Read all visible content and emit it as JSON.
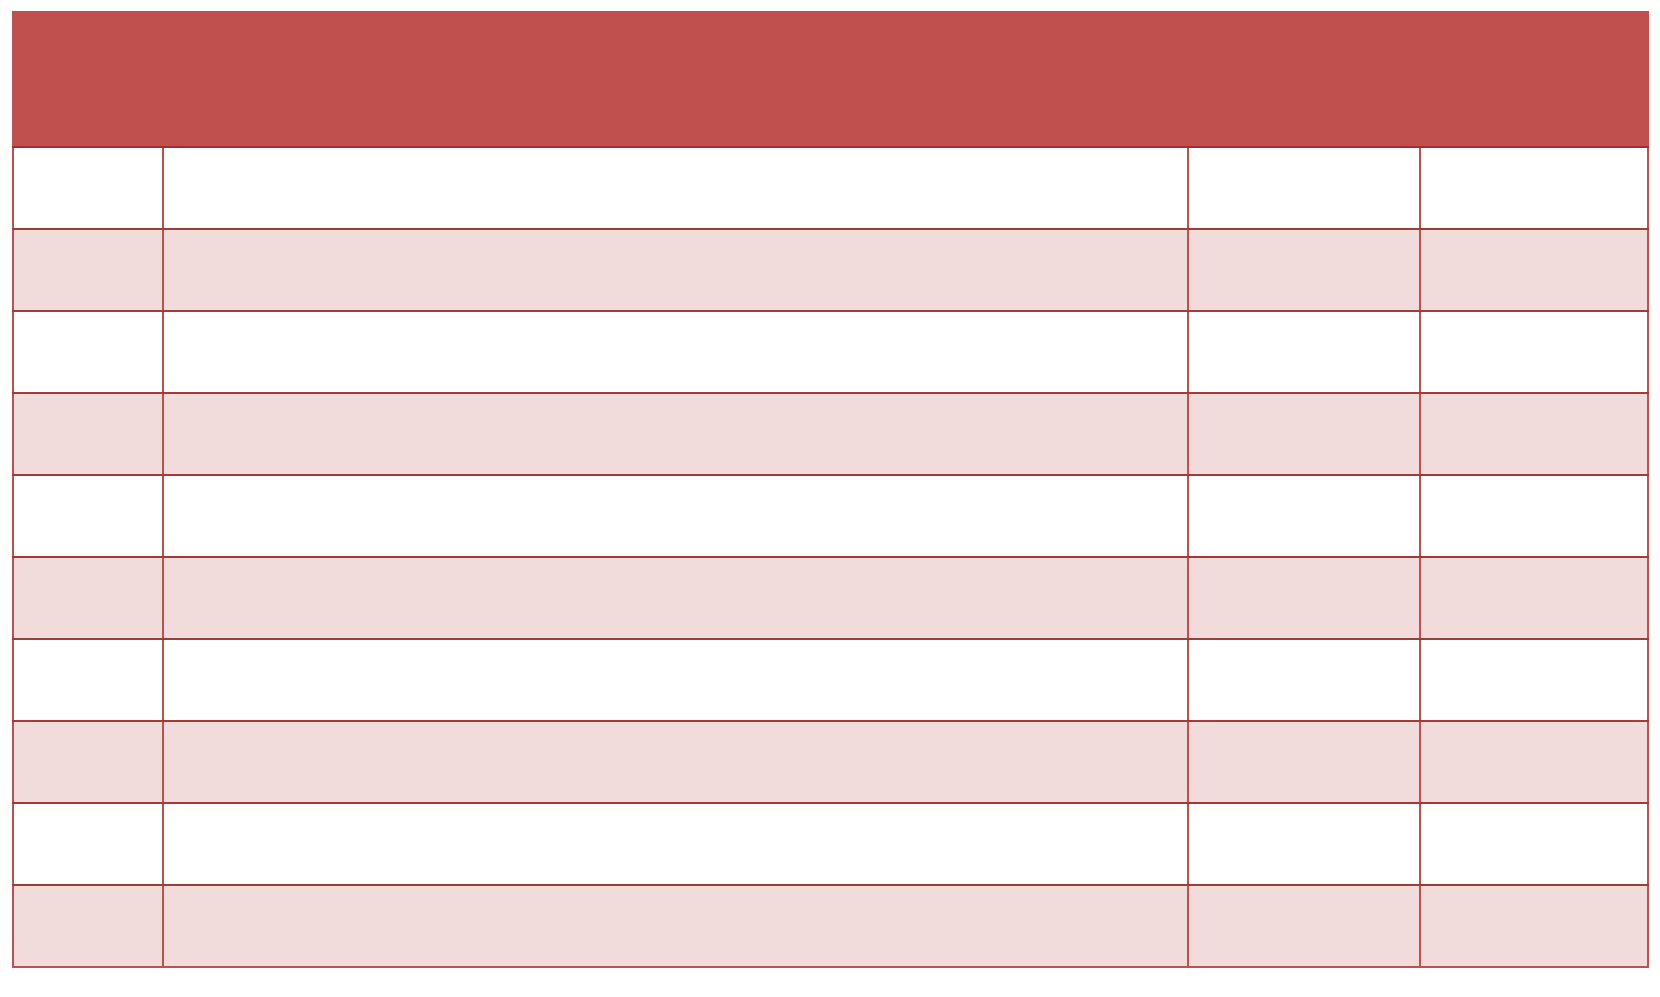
{
  "table": {
    "colors": {
      "header": "#C0504D",
      "stripe": "#F2DCDB",
      "border": "#C0504D"
    },
    "header": {
      "title": ""
    },
    "rows": [
      [
        "",
        "",
        "",
        ""
      ],
      [
        "",
        "",
        "",
        ""
      ],
      [
        "",
        "",
        "",
        ""
      ],
      [
        "",
        "",
        "",
        ""
      ],
      [
        "",
        "",
        "",
        ""
      ],
      [
        "",
        "",
        "",
        ""
      ],
      [
        "",
        "",
        "",
        ""
      ],
      [
        "",
        "",
        "",
        ""
      ],
      [
        "",
        "",
        "",
        ""
      ],
      [
        "",
        "",
        "",
        ""
      ]
    ]
  }
}
